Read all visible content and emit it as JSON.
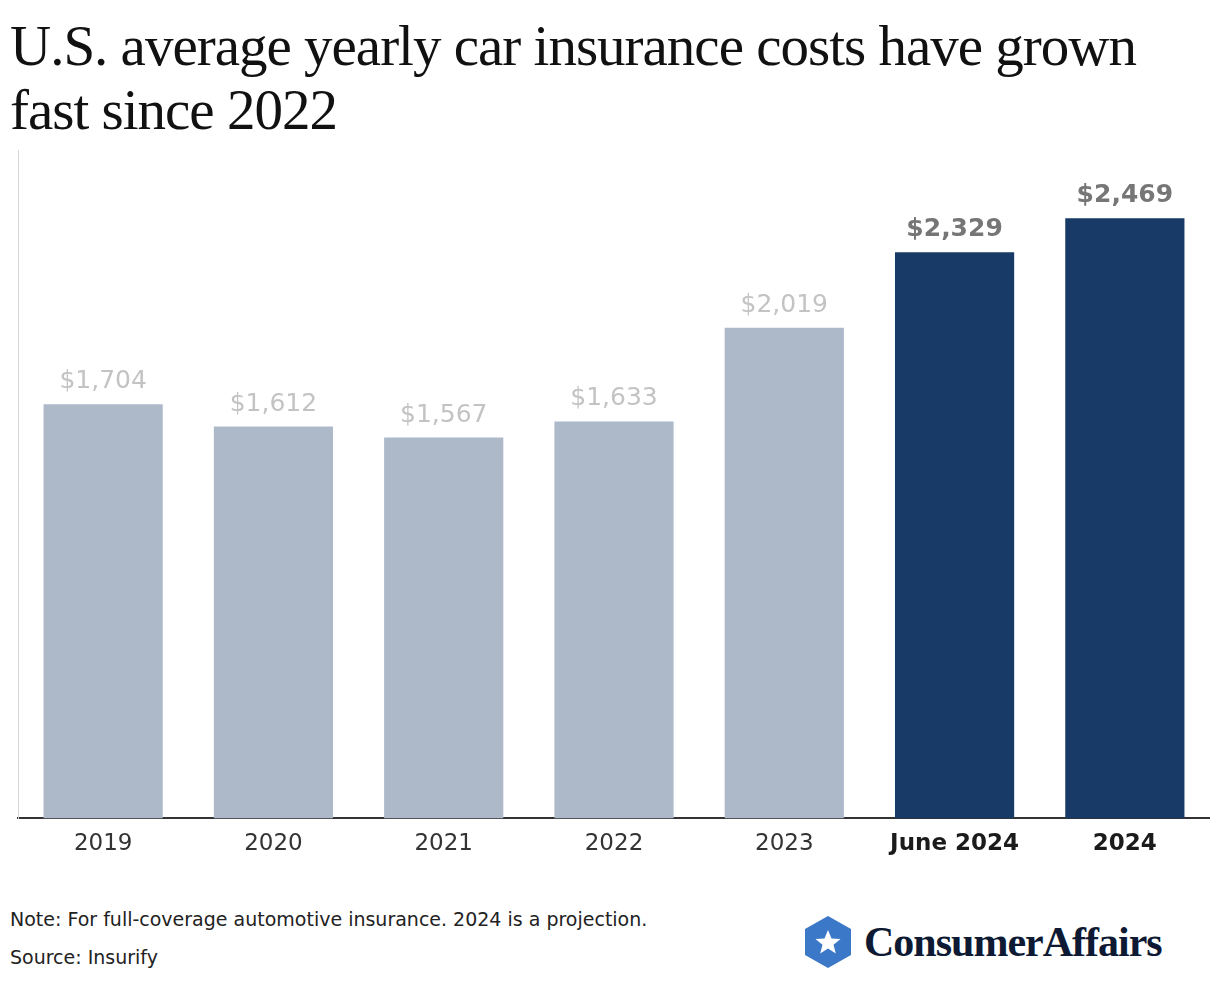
{
  "chart_data": {
    "type": "bar",
    "title": "U.S. average yearly car insurance costs have grown fast since 2022",
    "categories": [
      "2019",
      "2020",
      "2021",
      "2022",
      "2023",
      "June 2024",
      "2024"
    ],
    "values": [
      1704,
      1612,
      1567,
      1633,
      2019,
      2329,
      2469
    ],
    "value_labels": [
      "$1,704",
      "$1,612",
      "$1,567",
      "$1,633",
      "$2,019",
      "$2,329",
      "$2,469"
    ],
    "colors": [
      "#adb9c9",
      "#adb9c9",
      "#adb9c9",
      "#adb9c9",
      "#adb9c9",
      "#173a66",
      "#173a66"
    ],
    "ylim": [
      0,
      2750
    ],
    "grid": false,
    "data_labels": true,
    "tick_labels": "x"
  },
  "footer": {
    "note": "Note: For full-coverage automotive insurance. 2024 is a projection.",
    "source": "Source: Insurify",
    "brand": "ConsumerAffairs"
  }
}
